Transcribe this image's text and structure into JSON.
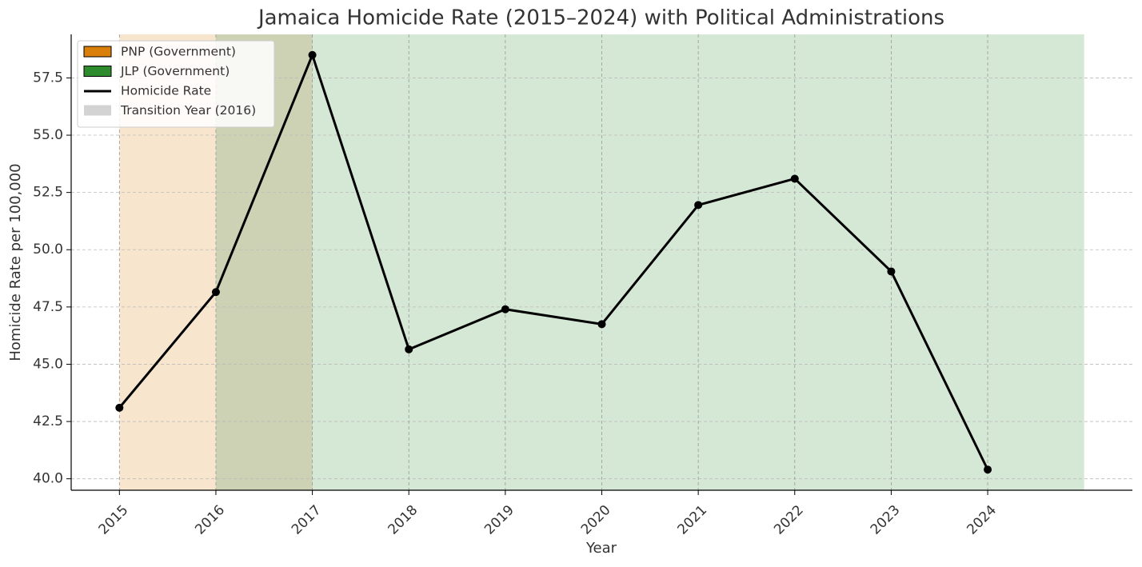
{
  "chart_data": {
    "type": "line",
    "title": "Jamaica Homicide Rate (2015–2024) with Political Administrations",
    "x_label": "Year",
    "y_label": "Homicide Rate per 100,000",
    "x": [
      2015,
      2016,
      2017,
      2018,
      2019,
      2020,
      2021,
      2022,
      2023,
      2024
    ],
    "series": [
      {
        "name": "Homicide Rate",
        "color": "#000000",
        "values": [
          43.1,
          48.15,
          58.5,
          45.65,
          47.4,
          46.75,
          51.95,
          53.1,
          49.05,
          40.4
        ]
      }
    ],
    "spans": [
      {
        "name": "PNP (Government)",
        "start": 2015,
        "end": 2017,
        "color": "#d97f0a"
      },
      {
        "name": "JLP (Government)",
        "start": 2016,
        "end": 2025,
        "color": "#2e8b2e"
      },
      {
        "name": "Transition Year (2016)",
        "start": 2016,
        "end": 2017,
        "color": "#d3d3d3"
      }
    ],
    "xlim": [
      2014.5,
      2025.5
    ],
    "ylim": [
      39.5,
      59.4
    ],
    "xticks": [
      2015,
      2016,
      2017,
      2018,
      2019,
      2020,
      2021,
      2022,
      2023,
      2024
    ],
    "yticks": [
      {
        "value": 40,
        "label": "40.0"
      },
      {
        "value": 42.5,
        "label": "42.5"
      },
      {
        "value": 45,
        "label": "45.0"
      },
      {
        "value": 47.5,
        "label": "47.5"
      },
      {
        "value": 50,
        "label": "50.0"
      },
      {
        "value": 52.5,
        "label": "52.5"
      },
      {
        "value": 55,
        "label": "55.0"
      },
      {
        "value": 57.5,
        "label": "57.5"
      }
    ],
    "grid": true,
    "legend": "upper left"
  }
}
